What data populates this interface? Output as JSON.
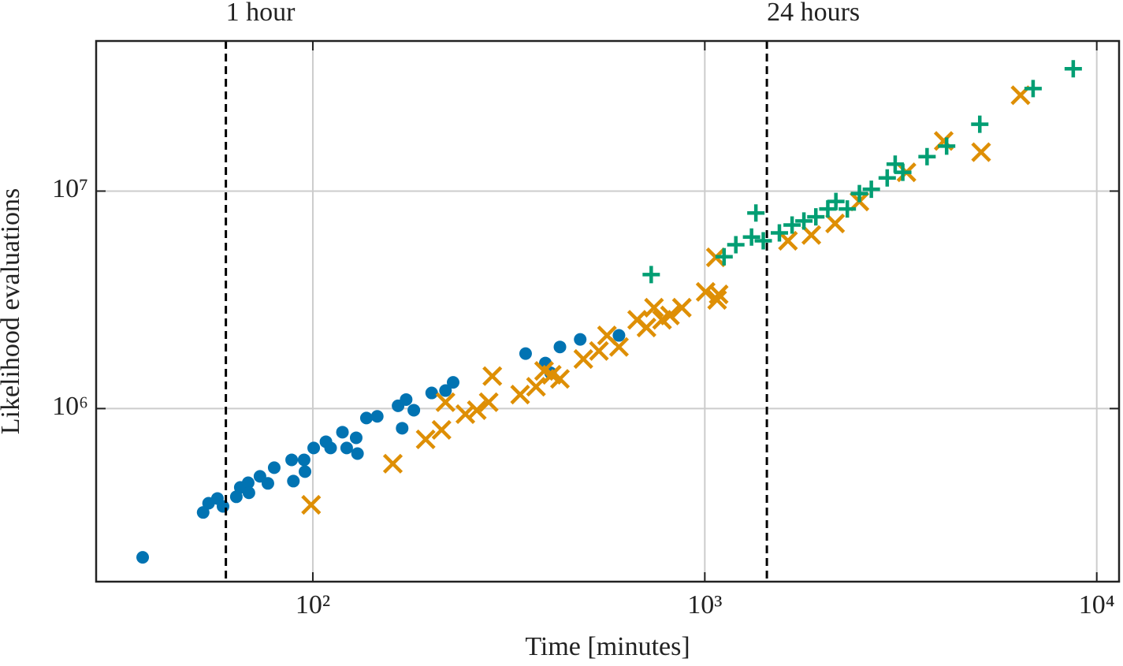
{
  "chart_data": {
    "type": "scatter",
    "xlabel": "Time [minutes]",
    "ylabel": "Likelihood evaluations",
    "xscale": "log",
    "yscale": "log",
    "grid": true,
    "xlim": [
      28,
      11400
    ],
    "ylim": [
      160000,
      49000000
    ],
    "xticks": [
      {
        "value": 100,
        "label": "10²"
      },
      {
        "value": 1000,
        "label": "10³"
      },
      {
        "value": 10000,
        "label": "10⁴"
      }
    ],
    "yticks": [
      {
        "value": 1000000,
        "label": "10⁶"
      },
      {
        "value": 10000000,
        "label": "10⁷"
      }
    ],
    "annotations": [
      {
        "x": 60,
        "text": "1 hour"
      },
      {
        "x": 1440,
        "text": "24 hours"
      }
    ],
    "series": [
      {
        "color": "#0173b2",
        "marker": "circle",
        "x": [
          36.8,
          52.5,
          54.2,
          57.1,
          59.0,
          63.8,
          65.3,
          68.4,
          68.7,
          73.3,
          76.8,
          79.7,
          88.3,
          89.2,
          95.0,
          95.5,
          100.5,
          108,
          111,
          119,
          122,
          129,
          130,
          137,
          146,
          165,
          169,
          173,
          181,
          201,
          218,
          228,
          349,
          392,
          404,
          427,
          481,
          604
        ],
        "values": [
          207000,
          333000,
          367000,
          386000,
          355000,
          393000,
          434000,
          456000,
          410000,
          488000,
          453000,
          535000,
          581000,
          464000,
          581000,
          513000,
          659000,
          704000,
          659000,
          779000,
          659000,
          734000,
          621000,
          905000,
          921000,
          1030000,
          812000,
          1100000,
          983000,
          1180000,
          1210000,
          1320000,
          1790000,
          1620000,
          1460000,
          1920000,
          2080000,
          2170000
        ]
      },
      {
        "color": "#de8f05",
        "marker": "x",
        "x": [
          99,
          160,
          194,
          213,
          218,
          245,
          262,
          287,
          281,
          338,
          371,
          389,
          407,
          427,
          490,
          537,
          563,
          604,
          672,
          710,
          742,
          778,
          815,
          874,
          1005,
          1075,
          1085,
          1067,
          1630,
          1870,
          2150,
          2480,
          3270,
          4070,
          5070,
          6390
        ],
        "values": [
          361000,
          558000,
          722000,
          798000,
          1070000,
          943000,
          983000,
          1410000,
          1070000,
          1160000,
          1260000,
          1490000,
          1430000,
          1370000,
          1690000,
          1840000,
          2170000,
          1920000,
          2560000,
          2360000,
          2910000,
          2560000,
          2680000,
          2910000,
          3440000,
          3160000,
          3350000,
          4960000,
          5910000,
          6280000,
          7100000,
          8960000,
          12200000,
          17000000,
          15100000,
          27600000
        ]
      },
      {
        "color": "#029e73",
        "marker": "plus",
        "x": [
          730,
          1120,
          1200,
          1316,
          1350,
          1410,
          1550,
          1670,
          1790,
          1920,
          2060,
          2160,
          2310,
          2480,
          2660,
          2920,
          3060,
          3200,
          3690,
          4140,
          5030,
          6880,
          8710
        ],
        "values": [
          4130000,
          4990000,
          5670000,
          6150000,
          7930000,
          5910000,
          6420000,
          6980000,
          7290000,
          7610000,
          8280000,
          8960000,
          8280000,
          9740000,
          10200000,
          11500000,
          13300000,
          12200000,
          14400000,
          16100000,
          20300000,
          29600000,
          36500000
        ]
      }
    ]
  }
}
